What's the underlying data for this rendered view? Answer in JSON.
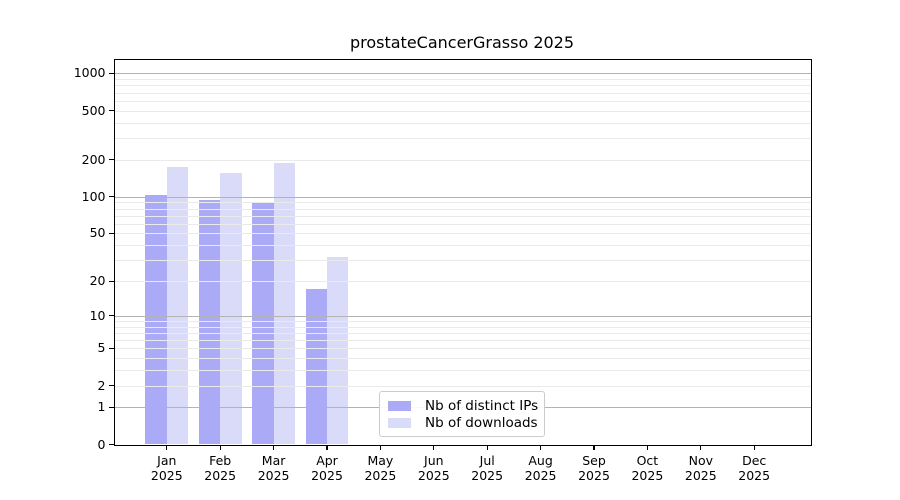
{
  "chart_data": {
    "type": "bar",
    "title": "prostateCancerGrasso 2025",
    "categories": [
      "Jan 2025",
      "Feb 2025",
      "Mar 2025",
      "Apr 2025",
      "May 2025",
      "Jun 2025",
      "Jul 2025",
      "Aug 2025",
      "Sep 2025",
      "Oct 2025",
      "Nov 2025",
      "Dec 2025"
    ],
    "series": [
      {
        "name": "Nb of distinct IPs",
        "slug": "distinct-ips",
        "color": "#aaaaf7",
        "values": [
          103,
          94,
          90,
          17,
          0,
          0,
          0,
          0,
          0,
          0,
          0,
          0
        ]
      },
      {
        "name": "Nb of downloads",
        "slug": "downloads",
        "color": "#dadaf9",
        "values": [
          173,
          157,
          188,
          32,
          0,
          0,
          0,
          0,
          0,
          0,
          0,
          0
        ]
      }
    ],
    "xlabel": "",
    "ylabel": "",
    "yscale": "log1p",
    "yticks": [
      0,
      1,
      2,
      5,
      10,
      20,
      50,
      100,
      200,
      500,
      1000
    ],
    "ylim": [
      0,
      1280
    ],
    "grid": "horizontal major + minor log gridlines",
    "legend_position": "lower center",
    "colors": {
      "grid_major": "#b3b3b3",
      "grid_minor": "#eaeaea",
      "axis": "#000000",
      "text": "#000000",
      "legend_border": "#cccccc",
      "background": "#ffffff"
    }
  }
}
